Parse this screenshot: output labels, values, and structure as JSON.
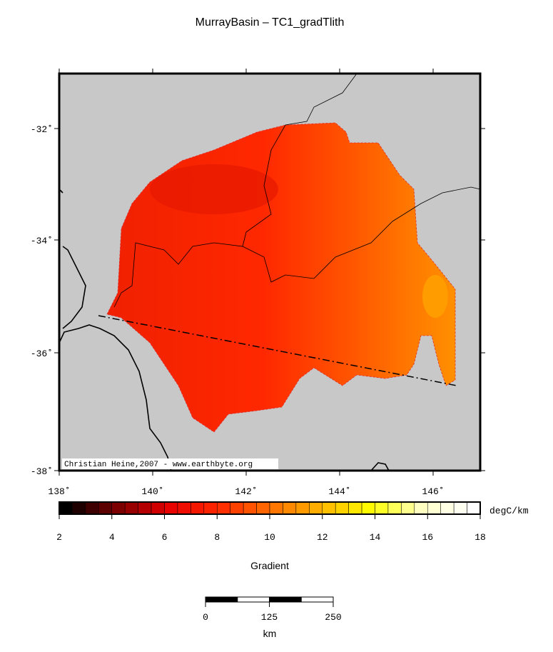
{
  "title": "MurrayBasin – TC1_gradTlith",
  "map": {
    "lat_labels": [
      "-32˚",
      "-34˚",
      "-36˚",
      "-38˚"
    ],
    "lon_labels": [
      "138˚",
      "140˚",
      "142˚",
      "144˚",
      "146˚"
    ],
    "credit": "Christian Heine,2007 - www.earthbyte.org"
  },
  "colorbar": {
    "ticks": [
      2,
      4,
      6,
      8,
      10,
      12,
      14,
      16,
      18
    ],
    "unit": "degC/km",
    "label": "Gradient"
  },
  "scalebar": {
    "ticks": [
      0,
      125,
      250
    ],
    "unit": "km"
  }
}
